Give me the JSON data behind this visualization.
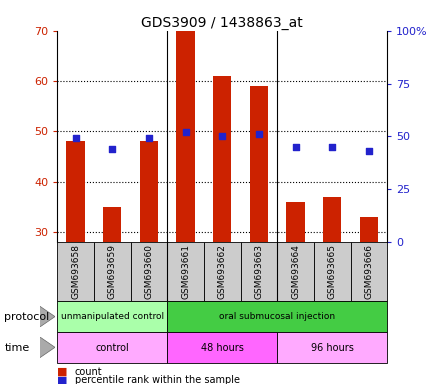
{
  "title": "GDS3909 / 1438863_at",
  "samples": [
    "GSM693658",
    "GSM693659",
    "GSM693660",
    "GSM693661",
    "GSM693662",
    "GSM693663",
    "GSM693664",
    "GSM693665",
    "GSM693666"
  ],
  "counts": [
    48,
    35,
    48,
    70,
    61,
    59,
    36,
    37,
    33
  ],
  "percentile_ranks": [
    49,
    44,
    49,
    52,
    50,
    51,
    45,
    45,
    43
  ],
  "ylim_left": [
    28,
    70
  ],
  "ylim_right": [
    0,
    100
  ],
  "yticks_left": [
    30,
    40,
    50,
    60,
    70
  ],
  "yticks_right": [
    0,
    25,
    50,
    75,
    100
  ],
  "bar_color": "#cc2200",
  "dot_color": "#2222cc",
  "protocol_groups": [
    {
      "label": "unmanipulated control",
      "start": 0,
      "end": 3,
      "color": "#aaffaa"
    },
    {
      "label": "oral submucosal injection",
      "start": 3,
      "end": 9,
      "color": "#44cc44"
    }
  ],
  "time_groups": [
    {
      "label": "control",
      "start": 0,
      "end": 3,
      "color": "#ffaaff"
    },
    {
      "label": "48 hours",
      "start": 3,
      "end": 6,
      "color": "#ff66ff"
    },
    {
      "label": "96 hours",
      "start": 6,
      "end": 9,
      "color": "#ffaaff"
    }
  ],
  "legend_count_label": "count",
  "legend_pct_label": "percentile rank within the sample",
  "left_tick_color": "#cc2200",
  "right_tick_color": "#2222cc",
  "bar_bottom": 28,
  "background_color": "#ffffff",
  "plot_bg": "#ffffff",
  "label_area_bg": "#cccccc",
  "group_dividers": [
    2.5,
    5.5
  ],
  "bar_width": 0.5
}
